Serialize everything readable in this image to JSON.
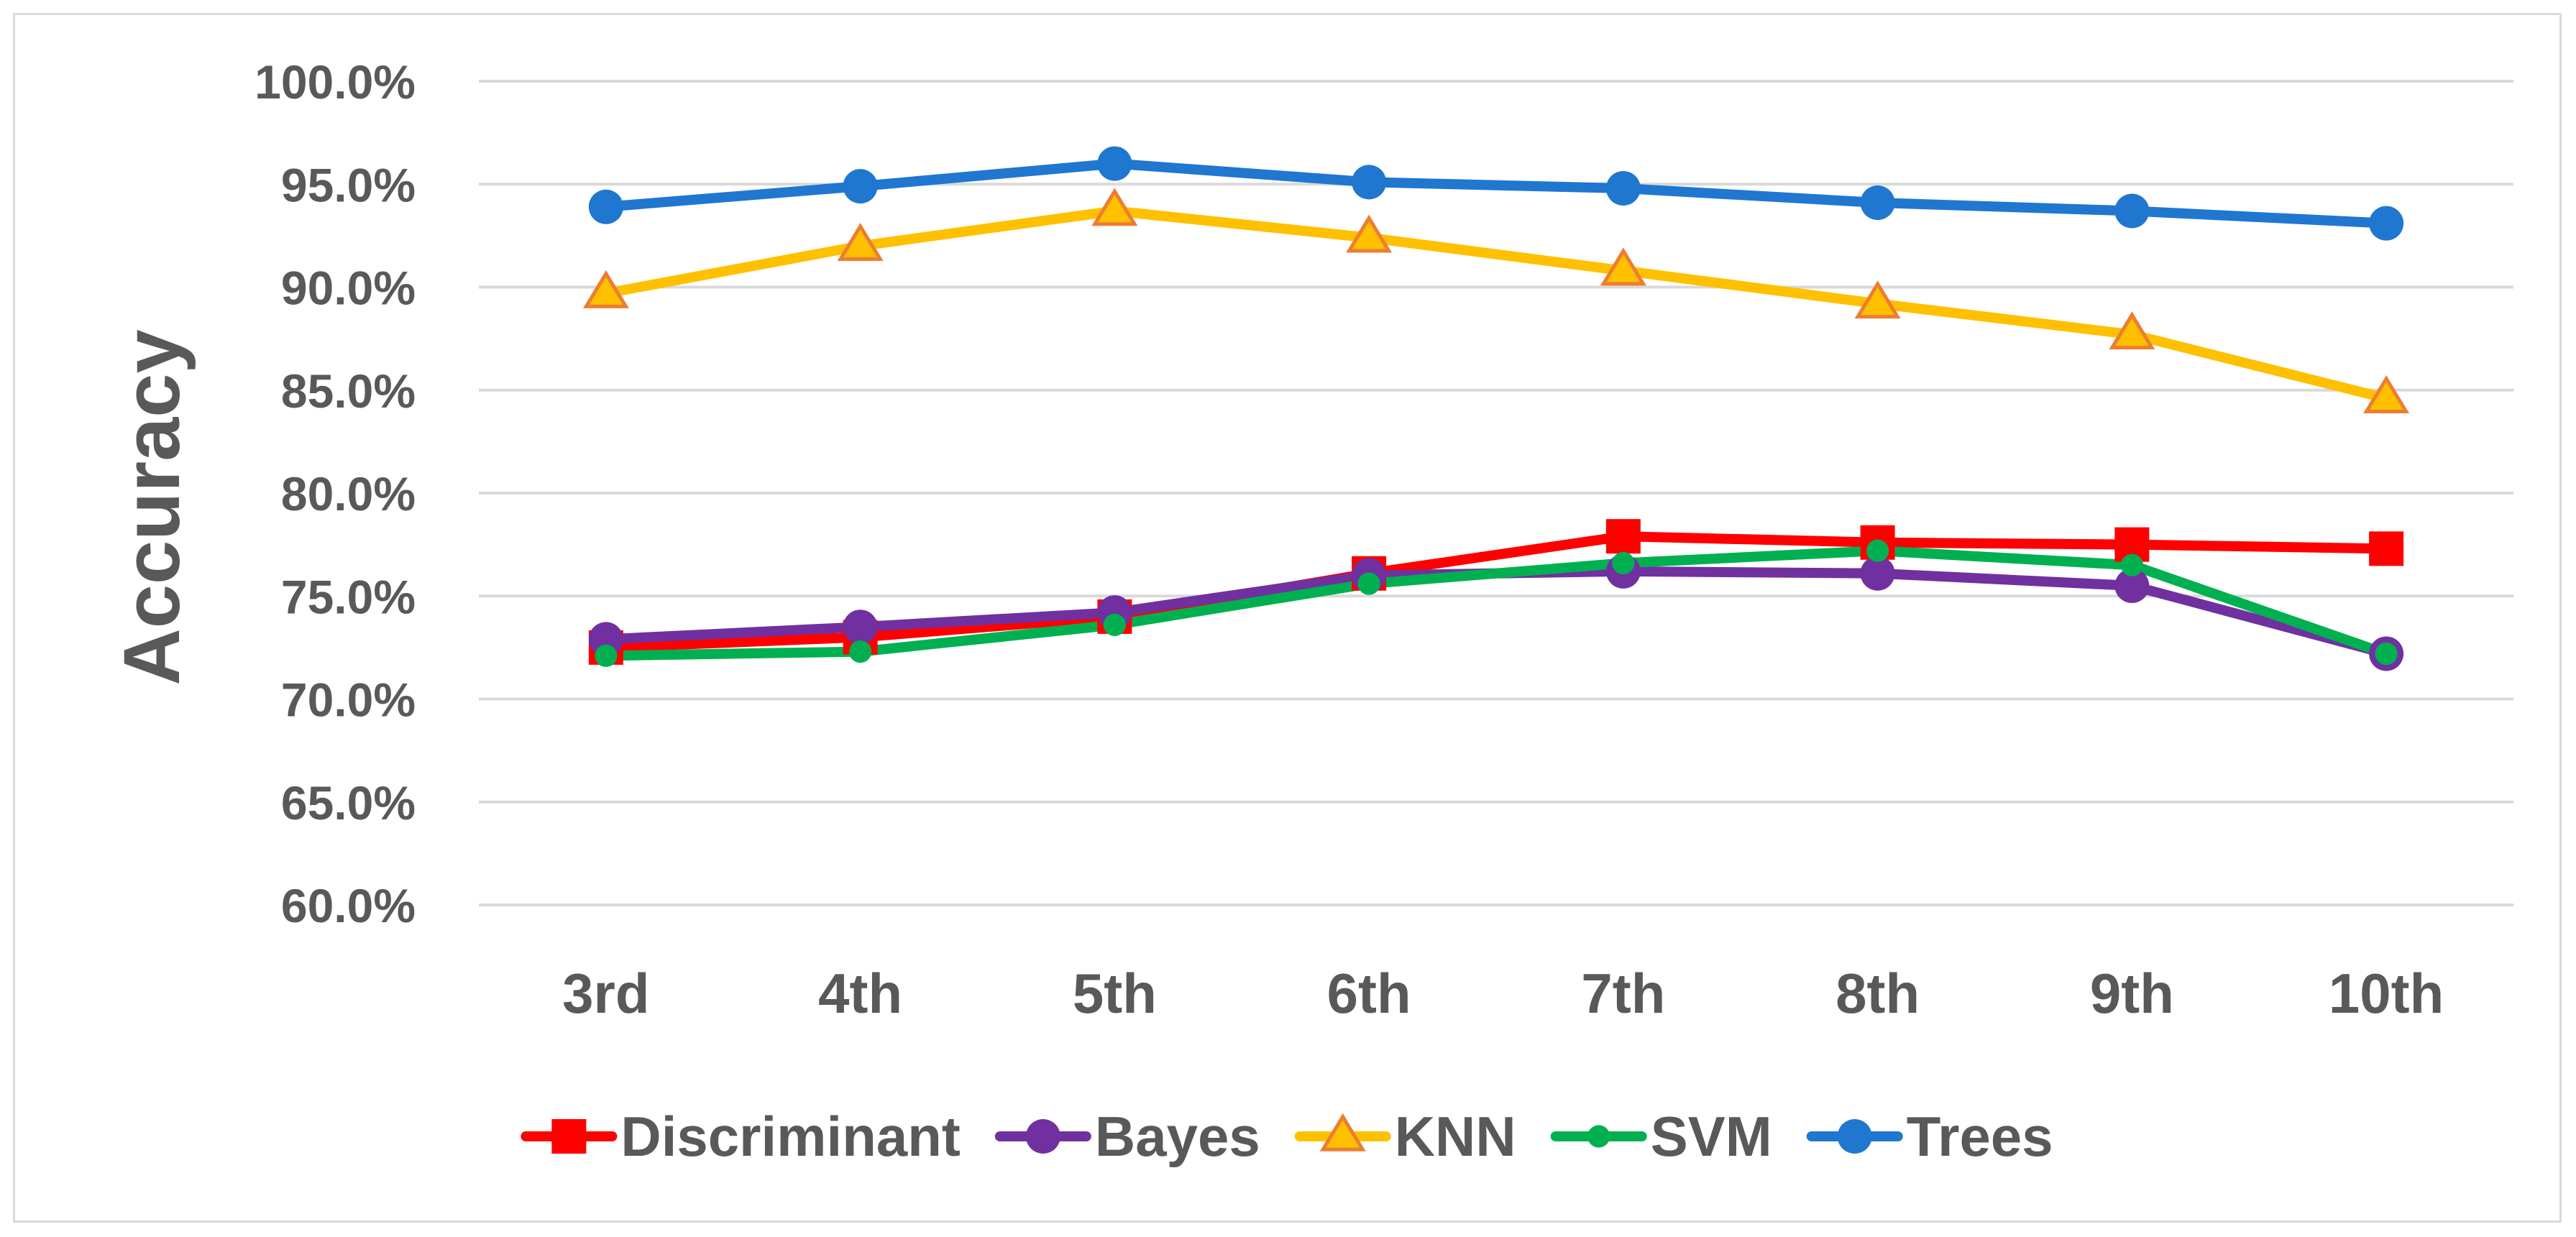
{
  "chart_data": {
    "type": "line",
    "title": "",
    "xlabel": "",
    "ylabel": "Accuracy",
    "ylim": [
      0.6,
      1.0
    ],
    "ytick_step": 0.05,
    "ytick_labels": [
      "60.0%",
      "65.0%",
      "70.0%",
      "75.0%",
      "80.0%",
      "85.0%",
      "90.0%",
      "95.0%",
      "100.0%"
    ],
    "grid": true,
    "legend_position": "bottom",
    "categories": [
      "3rd",
      "4th",
      "5th",
      "6th",
      "7th",
      "8th",
      "9th",
      "10th"
    ],
    "series": [
      {
        "name": "Discriminant",
        "color": "#ff0000",
        "marker": "square",
        "values": [
          0.725,
          0.73,
          0.74,
          0.761,
          0.779,
          0.776,
          0.775,
          0.773
        ]
      },
      {
        "name": "Bayes",
        "color": "#7030a0",
        "marker": "circle",
        "values": [
          0.729,
          0.735,
          0.742,
          0.76,
          0.762,
          0.761,
          0.755,
          0.722
        ]
      },
      {
        "name": "KNN",
        "color": "#ffc000",
        "marker": "triangle",
        "marker_edge": "#ed7d31",
        "values": [
          0.897,
          0.92,
          0.937,
          0.924,
          0.908,
          0.892,
          0.877,
          0.846
        ]
      },
      {
        "name": "SVM",
        "color": "#00b050",
        "marker": "small-circle",
        "values": [
          0.721,
          0.723,
          0.736,
          0.756,
          0.766,
          0.772,
          0.765,
          0.722
        ]
      },
      {
        "name": "Trees",
        "color": "#1f77d0",
        "marker": "circle",
        "values": [
          0.939,
          0.949,
          0.96,
          0.951,
          0.948,
          0.941,
          0.937,
          0.931
        ]
      }
    ]
  }
}
